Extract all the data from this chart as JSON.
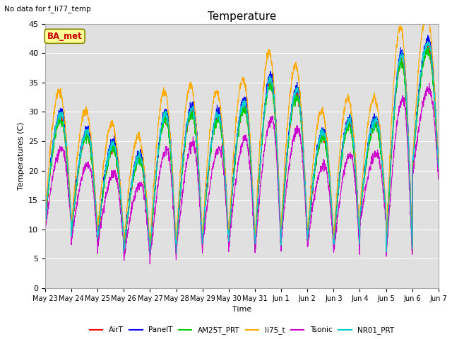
{
  "title": "Temperature",
  "ylabel": "Temperatures (C)",
  "xlabel": "Time",
  "annotation_text": "No data for f_li77_temp",
  "ba_met_label": "BA_met",
  "ylim": [
    0,
    45
  ],
  "plot_bg_color": "#e0e0e0",
  "series_colors": {
    "AirT": "#ff0000",
    "PanelT": "#0000ff",
    "AM25T_PRT": "#00cc00",
    "li75_t": "#ffaa00",
    "Tsonic": "#cc00cc",
    "NR01_PRT": "#00cccc"
  },
  "x_tick_labels": [
    "May 23",
    "May 24",
    "May 25",
    "May 26",
    "May 27",
    "May 28",
    "May 29",
    "May 30",
    "May 31",
    "Jun 1",
    "Jun 2",
    "Jun 3",
    "Jun 4",
    "Jun 5",
    "Jun 6",
    "Jun 7"
  ],
  "n_days": 15,
  "pts_per_day": 144
}
